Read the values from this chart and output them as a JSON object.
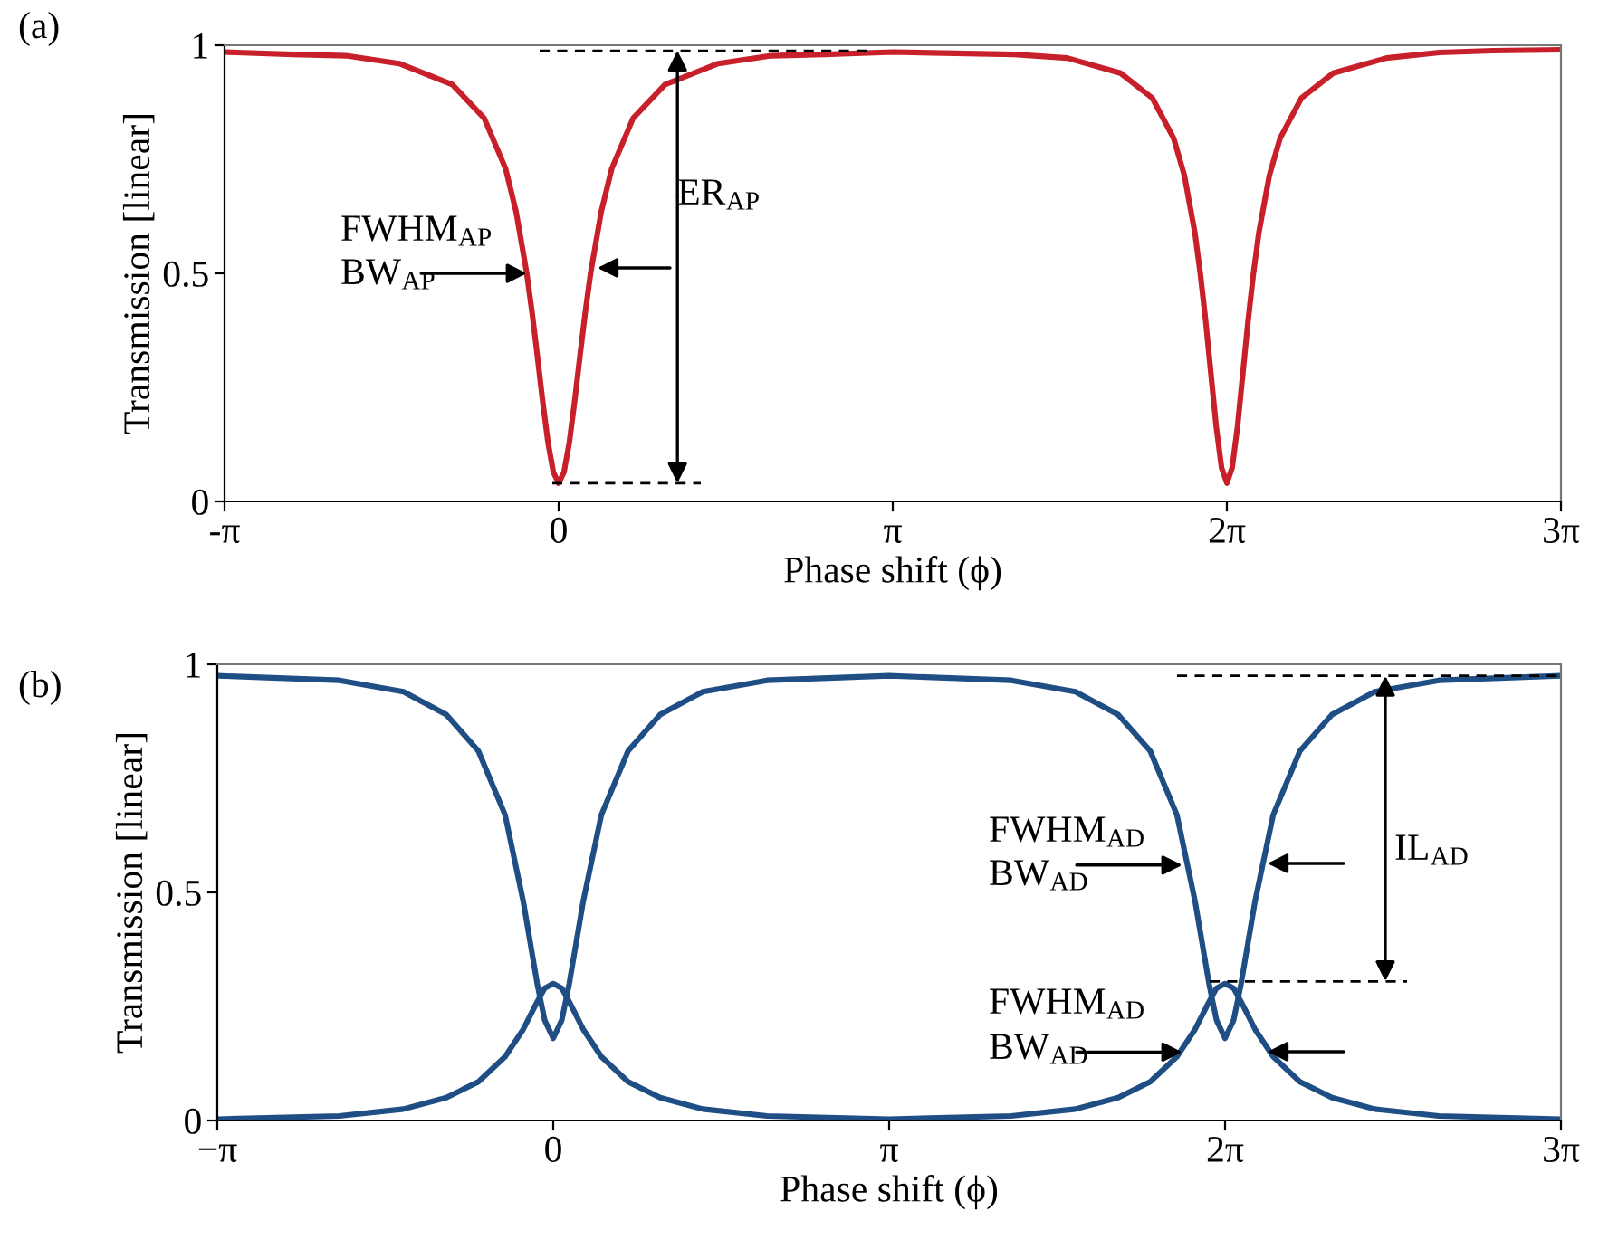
{
  "chart_data": [
    {
      "type": "line",
      "xlabel": "Phase shift (ϕ)",
      "ylabel": "Transmission [linear]",
      "annotations": [
        "(a)",
        {
          "text": "FWHM$_{AP}$",
          "x": -0.3,
          "y": 0.5
        },
        "BW$_{AP}$",
        {
          "text": "ER$_{AP}$",
          "x": 1.117,
          "y": 0.988
        }
      ],
      "ref_lines": [
        {
          "axis": "y",
          "value": 0.988,
          "label": null,
          "line_style": "dashed"
        },
        {
          "axis": "y",
          "value": 0.04,
          "label": null,
          "line_style": "dashed"
        }
      ],
      "xlim": [
        -3.1416,
        9.4248
      ],
      "ylim": [
        0,
        1
      ],
      "xticks": [
        {
          "value": -3.1416,
          "label": "-π"
        },
        {
          "value": 0,
          "label": "0"
        },
        {
          "value": 3.1416,
          "label": "π"
        },
        {
          "value": 6.2832,
          "label": "2π"
        },
        {
          "value": 9.4248,
          "label": "3π"
        }
      ],
      "yticks": [
        0,
        {
          "value": 0.5,
          "label": "0.5"
        },
        1
      ],
      "series": [
        {
          "color": "#c8202a",
          "x": [
            -3.1416,
            -2.5,
            -2,
            -1.5,
            -1,
            -0.7,
            -0.5,
            -0.4,
            -0.3,
            -0.25,
            -0.2,
            -0.15,
            -0.1,
            -0.05,
            0,
            0.05,
            0.1,
            0.15,
            0.2,
            0.25,
            0.3,
            0.4,
            0.5,
            0.7,
            1,
            1.5,
            2,
            2.5,
            3.1416,
            4.2832,
            4.7832,
            5.2832,
            5.5832,
            5.7832,
            5.8832,
            5.9832,
            6.0332,
            6.0832,
            6.1332,
            6.1832,
            6.2332,
            6.2832,
            6.3332,
            6.3832,
            6.4332,
            6.4832,
            6.5332,
            6.5832,
            6.6832,
            6.7832,
            6.9832,
            7.2832,
            7.7832,
            8.2832,
            8.7832,
            9.4248
          ],
          "values": [
            0.985,
            0.98,
            0.977,
            0.96,
            0.914,
            0.84,
            0.73,
            0.635,
            0.5,
            0.414,
            0.318,
            0.219,
            0.129,
            0.064,
            0.04,
            0.064,
            0.129,
            0.219,
            0.318,
            0.414,
            0.5,
            0.635,
            0.73,
            0.84,
            0.914,
            0.96,
            0.977,
            0.98,
            0.985,
            0.98,
            0.972,
            0.939,
            0.884,
            0.796,
            0.715,
            0.588,
            0.5,
            0.397,
            0.28,
            0.164,
            0.074,
            0.04,
            0.074,
            0.164,
            0.28,
            0.397,
            0.5,
            0.588,
            0.715,
            0.796,
            0.884,
            0.939,
            0.972,
            0.984,
            0.988,
            0.99
          ]
        }
      ]
    },
    {
      "type": "line",
      "xlabel": "Phase shift (ϕ)",
      "ylabel": "Transmission [linear]",
      "annotations": [
        "(b)",
        {
          "text": "FWHM$_{AD}$",
          "x": 5.8832,
          "y": 0.56
        },
        "BW$_{AD}$",
        {
          "text": "FWHM$_{AD}$",
          "x": 5.8832,
          "y": 0.15
        },
        "BW$_{AD}$",
        "IL$_{AD}$"
      ],
      "ref_lines": [
        {
          "axis": "y",
          "value": 0.975,
          "label": null,
          "line_style": "dashed"
        },
        {
          "axis": "y",
          "value": 0.305,
          "label": null,
          "line_style": "dashed"
        }
      ],
      "xlim": [
        -3.1416,
        9.4248
      ],
      "ylim": [
        0,
        1
      ],
      "xticks": [
        {
          "value": -3.1416,
          "label": "−π"
        },
        {
          "value": 0,
          "label": "0"
        },
        {
          "value": 3.1416,
          "label": "π"
        },
        {
          "value": 6.2832,
          "label": "2π"
        },
        {
          "value": 9.4248,
          "label": "3π"
        }
      ],
      "yticks": [
        0,
        {
          "value": 0.5,
          "label": "0.5"
        },
        1
      ],
      "series": [
        {
          "color": "#1f4e85",
          "x": [
            -3.1416,
            -2,
            -1.4,
            -1,
            -0.7,
            -0.45,
            -0.28,
            -0.15,
            -0.08,
            0,
            0.08,
            0.15,
            0.28,
            0.45,
            0.7,
            1,
            1.4,
            2,
            3.1416,
            4.2832,
            4.8832,
            5.2832,
            5.5832,
            5.8332,
            6.0032,
            6.1332,
            6.2032,
            6.2832,
            6.3632,
            6.4332,
            6.5632,
            6.7332,
            6.9832,
            7.2832,
            7.6832,
            8.2832,
            9.4248
          ],
          "values": [
            0.975,
            0.965,
            0.94,
            0.89,
            0.81,
            0.67,
            0.48,
            0.3,
            0.22,
            0.18,
            0.22,
            0.3,
            0.48,
            0.67,
            0.81,
            0.89,
            0.94,
            0.965,
            0.975,
            0.965,
            0.94,
            0.89,
            0.81,
            0.67,
            0.48,
            0.3,
            0.22,
            0.18,
            0.22,
            0.3,
            0.48,
            0.67,
            0.81,
            0.89,
            0.94,
            0.965,
            0.975
          ]
        },
        {
          "color": "#1f4e85",
          "x": [
            -3.1416,
            -2,
            -1.4,
            -1,
            -0.7,
            -0.45,
            -0.28,
            -0.15,
            -0.08,
            0,
            0.08,
            0.15,
            0.28,
            0.45,
            0.7,
            1,
            1.4,
            2,
            3.1416,
            4.2832,
            4.8832,
            5.2832,
            5.5832,
            5.8332,
            6.0032,
            6.1332,
            6.2032,
            6.2832,
            6.3632,
            6.4332,
            6.5632,
            6.7332,
            6.9832,
            7.2832,
            7.6832,
            8.2832,
            9.4248
          ],
          "values": [
            0.003,
            0.01,
            0.025,
            0.05,
            0.085,
            0.14,
            0.2,
            0.26,
            0.29,
            0.3,
            0.29,
            0.26,
            0.2,
            0.14,
            0.085,
            0.05,
            0.025,
            0.01,
            0.003,
            0.01,
            0.025,
            0.05,
            0.085,
            0.14,
            0.2,
            0.26,
            0.29,
            0.3,
            0.29,
            0.26,
            0.2,
            0.14,
            0.085,
            0.05,
            0.025,
            0.01,
            0.003
          ]
        }
      ]
    }
  ]
}
